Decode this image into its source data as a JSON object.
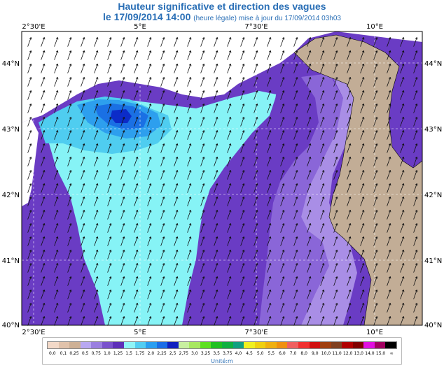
{
  "header": {
    "title": "Hauteur significative et direction des vagues",
    "subtitle_main": "le 17/09/2014 14:00",
    "subtitle_note": "(heure légale) mise à jour du 17/09/2014 03h03"
  },
  "axes": {
    "lon_labels": [
      "2°30'E",
      "5°E",
      "7°30'E",
      "10°E"
    ],
    "lat_labels": [
      "44°N",
      "43°N",
      "42°N",
      "41°N",
      "40°N"
    ]
  },
  "legend": {
    "ticks": [
      "0,0",
      "0,1",
      "0,25",
      "0,5",
      "0,75",
      "1,0",
      "1,25",
      "1,5",
      "1,75",
      "2,0",
      "2,25",
      "2,5",
      "2,75",
      "3,0",
      "3,25",
      "3,5",
      "3,75",
      "4,0",
      "4,5",
      "5,0",
      "5,5",
      "6,0",
      "7,0",
      "8,0",
      "9,0",
      "10,0",
      "11,0",
      "12,0",
      "13,0",
      "14,0",
      "15,0",
      "∞"
    ],
    "colors": [
      "#f3d9c8",
      "#e0c2ab",
      "#cdb095",
      "#b8a8f2",
      "#9a7fe0",
      "#7a52cc",
      "#5e2fb8",
      "#8ff4f7",
      "#52cdf2",
      "#2a9ef0",
      "#1b6de6",
      "#1020c0",
      "#c8f0a0",
      "#a8e860",
      "#5ee020",
      "#20c020",
      "#10b040",
      "#10a080",
      "#f0f020",
      "#f0d010",
      "#f0b010",
      "#f09010",
      "#f06060",
      "#f03030",
      "#d01010",
      "#a04010",
      "#804020",
      "#b00000",
      "#800000",
      "#e010e0",
      "#a00060",
      "#000000"
    ],
    "unit": "Unité:m"
  },
  "map": {
    "colors": {
      "land": "#c2ad96",
      "land_dark": "#a8927c",
      "c0_5": "#c8b6f4",
      "c0_75": "#a98ee6",
      "c1_0": "#8a66d8",
      "c1_25": "#6a3cc4",
      "c1_5": "#86f3f6",
      "c1_75": "#4fcdf0",
      "c2_0": "#2d9fee",
      "c2_25": "#1a70e4",
      "c2_5": "#0c2cc8",
      "frame": "#000000",
      "grid": "#ffffff"
    },
    "wave_direction_deg": 290
  }
}
